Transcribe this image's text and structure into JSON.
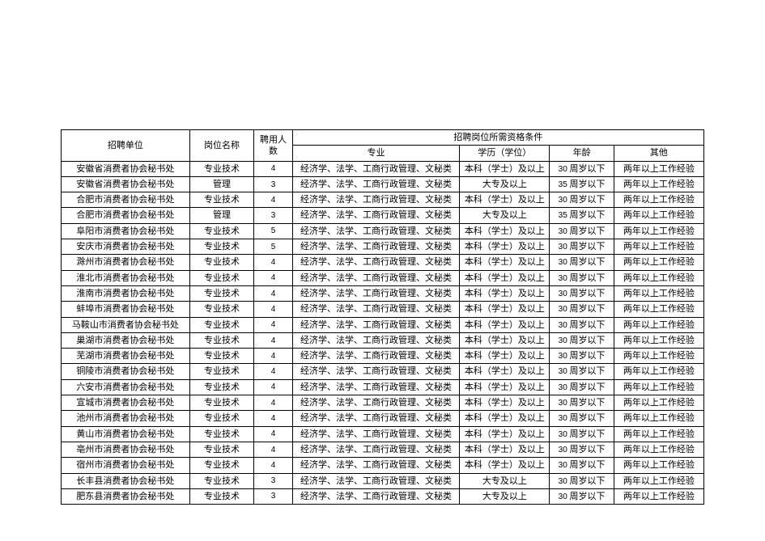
{
  "table": {
    "columns": {
      "org": "招聘单位",
      "position": "岗位名称",
      "count": "聘用人数",
      "qualGroup": "招聘岗位所需资格条件",
      "major": "专业",
      "education": "学历（学位）",
      "age": "年龄",
      "other": "其他"
    },
    "rows": [
      {
        "org": "安徽省消费者协会秘书处",
        "position": "专业技术",
        "count": "4",
        "major": "经济学、法学、工商行政管理、文秘类",
        "education": "本科（学士）及以上",
        "ageNum": "30",
        "ageText": "周岁以下",
        "other": "两年以上工作经验"
      },
      {
        "org": "安徽省消费者协会秘书处",
        "position": "管理",
        "count": "3",
        "major": "经济学、法学、工商行政管理、文秘类",
        "education": "大专及以上",
        "ageNum": "35",
        "ageText": "周岁以下",
        "other": "两年以上工作经验"
      },
      {
        "org": "合肥市消费者协会秘书处",
        "position": "专业技术",
        "count": "4",
        "major": "经济学、法学、工商行政管理、文秘类",
        "education": "本科（学士）及以上",
        "ageNum": "30",
        "ageText": "周岁以下",
        "other": "两年以上工作经验"
      },
      {
        "org": "合肥市消费者协会秘书处",
        "position": "管理",
        "count": "3",
        "major": "经济学、法学、工商行政管理、文秘类",
        "education": "大专及以上",
        "ageNum": "35",
        "ageText": "周岁以下",
        "other": "两年以上工作经验"
      },
      {
        "org": "阜阳市消费者协会秘书处",
        "position": "专业技术",
        "count": "5",
        "major": "经济学、法学、工商行政管理、文秘类",
        "education": "本科（学士）及以上",
        "ageNum": "30",
        "ageText": "周岁以下",
        "other": "两年以上工作经验"
      },
      {
        "org": "安庆市消费者协会秘书处",
        "position": "专业技术",
        "count": "5",
        "major": "经济学、法学、工商行政管理、文秘类",
        "education": "本科（学士）及以上",
        "ageNum": "30",
        "ageText": "周岁以下",
        "other": "两年以上工作经验"
      },
      {
        "org": "滁州市消费者协会秘书处",
        "position": "专业技术",
        "count": "4",
        "major": "经济学、法学、工商行政管理、文秘类",
        "education": "本科（学士）及以上",
        "ageNum": "30",
        "ageText": "周岁以下",
        "other": "两年以上工作经验"
      },
      {
        "org": "淮北市消费者协会秘书处",
        "position": "专业技术",
        "count": "4",
        "major": "经济学、法学、工商行政管理、文秘类",
        "education": "本科（学士）及以上",
        "ageNum": "30",
        "ageText": "周岁以下",
        "other": "两年以上工作经验"
      },
      {
        "org": "淮南市消费者协会秘书处",
        "position": "专业技术",
        "count": "4",
        "major": "经济学、法学、工商行政管理、文秘类",
        "education": "本科（学士）及以上",
        "ageNum": "30",
        "ageText": "周岁以下",
        "other": "两年以上工作经验"
      },
      {
        "org": "蚌埠市消费者协会秘书处",
        "position": "专业技术",
        "count": "4",
        "major": "经济学、法学、工商行政管理、文秘类",
        "education": "本科（学士）及以上",
        "ageNum": "30",
        "ageText": "周岁以下",
        "other": "两年以上工作经验"
      },
      {
        "org": "马鞍山市消费者协会秘书处",
        "position": "专业技术",
        "count": "4",
        "major": "经济学、法学、工商行政管理、文秘类",
        "education": "本科（学士）及以上",
        "ageNum": "30",
        "ageText": "周岁以下",
        "other": "两年以上工作经验"
      },
      {
        "org": "巢湖市消费者协会秘书处",
        "position": "专业技术",
        "count": "4",
        "major": "经济学、法学、工商行政管理、文秘类",
        "education": "本科（学士）及以上",
        "ageNum": "30",
        "ageText": "周岁以下",
        "other": "两年以上工作经验"
      },
      {
        "org": "芜湖市消费者协会秘书处",
        "position": "专业技术",
        "count": "4",
        "major": "经济学、法学、工商行政管理、文秘类",
        "education": "本科（学士）及以上",
        "ageNum": "30",
        "ageText": "周岁以下",
        "other": "两年以上工作经验"
      },
      {
        "org": "铜陵市消费者协会秘书处",
        "position": "专业技术",
        "count": "4",
        "major": "经济学、法学、工商行政管理、文秘类",
        "education": "本科（学士）及以上",
        "ageNum": "30",
        "ageText": "周岁以下",
        "other": "两年以上工作经验"
      },
      {
        "org": "六安市消费者协会秘书处",
        "position": "专业技术",
        "count": "4",
        "major": "经济学、法学、工商行政管理、文秘类",
        "education": "本科（学士）及以上",
        "ageNum": "30",
        "ageText": "周岁以下",
        "other": "两年以上工作经验"
      },
      {
        "org": "宣城市消费者协会秘书处",
        "position": "专业技术",
        "count": "4",
        "major": "经济学、法学、工商行政管理、文秘类",
        "education": "本科（学士）及以上",
        "ageNum": "30",
        "ageText": "周岁以下",
        "other": "两年以上工作经验"
      },
      {
        "org": "池州市消费者协会秘书处",
        "position": "专业技术",
        "count": "4",
        "major": "经济学、法学、工商行政管理、文秘类",
        "education": "本科（学士）及以上",
        "ageNum": "30",
        "ageText": "周岁以下",
        "other": "两年以上工作经验"
      },
      {
        "org": "黄山市消费者协会秘书处",
        "position": "专业技术",
        "count": "4",
        "major": "经济学、法学、工商行政管理、文秘类",
        "education": "本科（学士）及以上",
        "ageNum": "30",
        "ageText": "周岁以下",
        "other": "两年以上工作经验"
      },
      {
        "org": "亳州市消费者协会秘书处",
        "position": "专业技术",
        "count": "4",
        "major": "经济学、法学、工商行政管理、文秘类",
        "education": "本科（学士）及以上",
        "ageNum": "30",
        "ageText": "周岁以下",
        "other": "两年以上工作经验"
      },
      {
        "org": "宿州市消费者协会秘书处",
        "position": "专业技术",
        "count": "4",
        "major": "经济学、法学、工商行政管理、文秘类",
        "education": "本科（学士）及以上",
        "ageNum": "30",
        "ageText": "周岁以下",
        "other": "两年以上工作经验"
      },
      {
        "org": "长丰县消费者协会秘书处",
        "position": "专业技术",
        "count": "3",
        "major": "经济学、法学、工商行政管理、文秘类",
        "education": "大专及以上",
        "ageNum": "30",
        "ageText": "周岁以下",
        "other": "两年以上工作经验"
      },
      {
        "org": "肥东县消费者协会秘书处",
        "position": "专业技术",
        "count": "3",
        "major": "经济学、法学、工商行政管理、文秘类",
        "education": "大专及以上",
        "ageNum": "30",
        "ageText": "周岁以下",
        "other": "两年以上工作经验"
      }
    ],
    "styling": {
      "border_color": "#000000",
      "background_color": "#ffffff",
      "text_color": "#000000",
      "font_family": "SimSun",
      "font_size": 11,
      "count_font_family": "Arial",
      "count_font_size": 10
    }
  }
}
